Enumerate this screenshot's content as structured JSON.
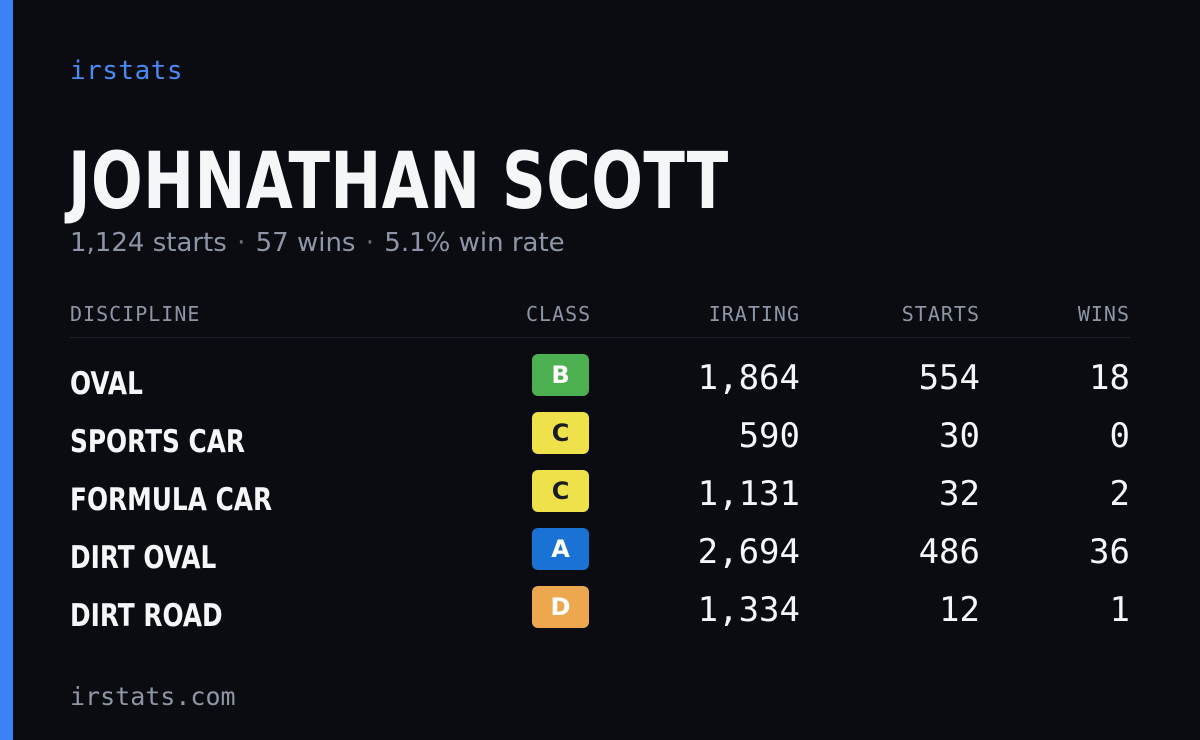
{
  "brand": "irstats",
  "player": {
    "name": "JOHNATHAN SCOTT",
    "starts_text": "1,124 starts",
    "wins_text": "57 wins",
    "win_rate_text": "5.1% win rate",
    "separator": "·"
  },
  "table": {
    "headers": {
      "discipline": "DISCIPLINE",
      "class": "CLASS",
      "irating": "IRATING",
      "starts": "STARTS",
      "wins": "WINS"
    },
    "rows": [
      {
        "discipline": "OVAL",
        "class": "B",
        "class_color": "#4caf50",
        "class_text_color": "#ffffff",
        "irating": "1,864",
        "starts": "554",
        "wins": "18"
      },
      {
        "discipline": "SPORTS CAR",
        "class": "C",
        "class_color": "#eee14a",
        "class_text_color": "#1a1c22",
        "irating": "590",
        "starts": "30",
        "wins": "0"
      },
      {
        "discipline": "FORMULA CAR",
        "class": "C",
        "class_color": "#eee14a",
        "class_text_color": "#1a1c22",
        "irating": "1,131",
        "starts": "32",
        "wins": "2"
      },
      {
        "discipline": "DIRT OVAL",
        "class": "A",
        "class_color": "#1a73d4",
        "class_text_color": "#ffffff",
        "irating": "2,694",
        "starts": "486",
        "wins": "36"
      },
      {
        "discipline": "DIRT ROAD",
        "class": "D",
        "class_color": "#eda84f",
        "class_text_color": "#ffffff",
        "irating": "1,334",
        "starts": "12",
        "wins": "1"
      }
    ]
  },
  "footer": {
    "url": "irstats.com"
  },
  "colors": {
    "accent": "#3b82f6",
    "background": "#0a0c12"
  }
}
